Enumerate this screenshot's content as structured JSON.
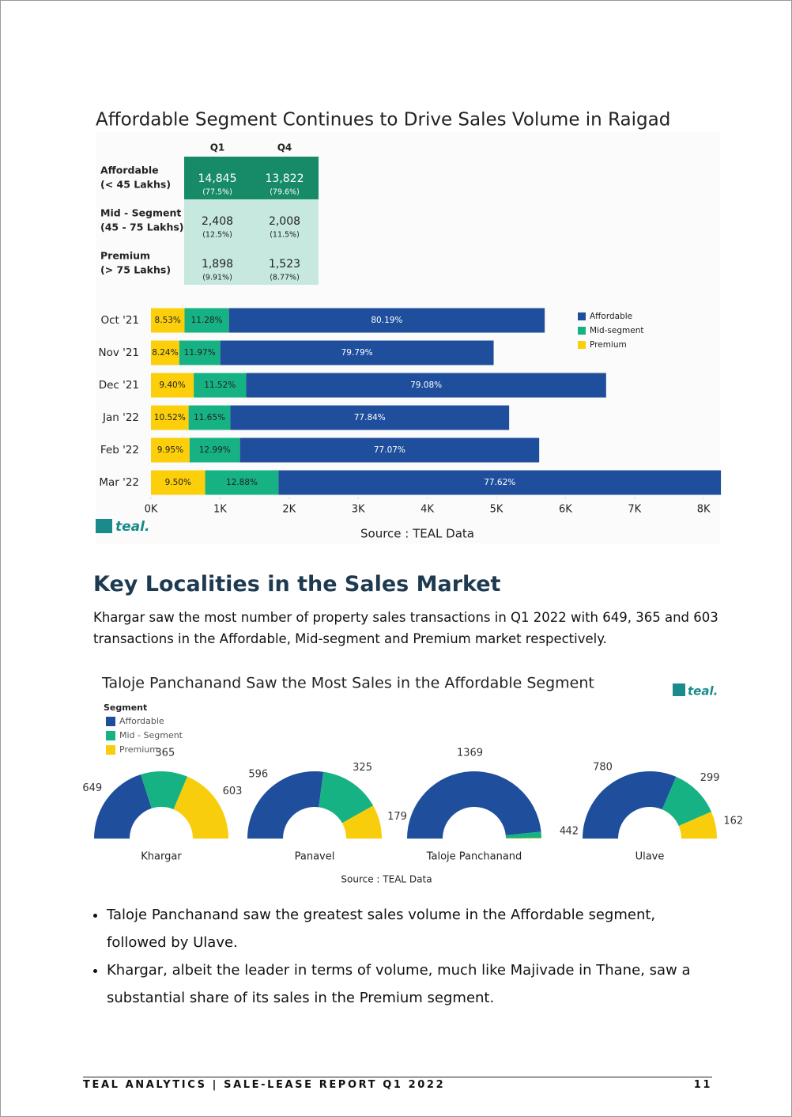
{
  "table": {
    "columns": [
      "Q1",
      "Q4"
    ],
    "rows": [
      {
        "label": [
          "Affordable",
          "(< 45 Lakhs)"
        ],
        "cells": [
          {
            "value": "14,845",
            "share": "(77.5%)"
          },
          {
            "value": "13,822",
            "share": "(79.6%)"
          }
        ]
      },
      {
        "label": [
          "Mid - Segment",
          "(45 - 75 Lakhs)"
        ],
        "cells": [
          {
            "value": "2,408",
            "share": "(12.5%)"
          },
          {
            "value": "2,008",
            "share": "(11.5%)"
          }
        ]
      },
      {
        "label": [
          "Premium",
          "(> 75 Lakhs)"
        ],
        "cells": [
          {
            "value": "1,898",
            "share": "(9.91%)"
          },
          {
            "value": "1,523",
            "share": "(8.77%)"
          }
        ]
      }
    ]
  },
  "chart_data": [
    {
      "type": "stacked-bar-horizontal",
      "title": "Affordable Segment Continues to Drive Sales Volume in Raigad",
      "categories": [
        "Oct '21",
        "Nov '21",
        "Dec '21",
        "Jan '22",
        "Feb '22",
        "Mar '22"
      ],
      "series": [
        {
          "name": "Affordable",
          "color": "#1f4e9c",
          "values": [
            4571,
            3958,
            5211,
            4036,
            4331,
            6404
          ],
          "labels": [
            "80.19%",
            "79.79%",
            "79.08%",
            "77.84%",
            "77.07%",
            "77.62%"
          ]
        },
        {
          "name": "Mid-segment",
          "color": "#17b283",
          "values": [
            643,
            594,
            759,
            604,
            730,
            1063
          ],
          "labels": [
            "11.28%",
            "11.97%",
            "11.52%",
            "11.65%",
            "12.99%",
            "12.88%"
          ]
        },
        {
          "name": "Premium",
          "color": "#fccf0a",
          "values": [
            486,
            409,
            619,
            545,
            559,
            784
          ],
          "labels": [
            "8.53%",
            "8.24%",
            "9.40%",
            "10.52%",
            "9.95%",
            "9.50%"
          ]
        }
      ],
      "xlim": [
        0,
        8250
      ],
      "xticks": [
        {
          "value": 0,
          "label": "0K"
        },
        {
          "value": 1000,
          "label": "1K"
        },
        {
          "value": 2000,
          "label": "2K"
        },
        {
          "value": 3000,
          "label": "3K"
        },
        {
          "value": 4000,
          "label": "4K"
        },
        {
          "value": 5000,
          "label": "5K"
        },
        {
          "value": 6000,
          "label": "6K"
        },
        {
          "value": 7000,
          "label": "7K"
        },
        {
          "value": 8000,
          "label": "8K"
        }
      ],
      "legend": "upper right",
      "source": "Source : TEAL Data",
      "logo": "teal."
    },
    {
      "type": "half-donut",
      "title": "Taloje Panchanand Saw the Most Sales in the Affordable Segment",
      "legend_title": "Segment",
      "categories": [
        "Khargar",
        "Panavel",
        "Taloje Panchanand",
        "Ulave"
      ],
      "series": [
        {
          "name": "Affordable",
          "color": "#1f4e9c",
          "values": [
            649,
            596,
            1369,
            780
          ]
        },
        {
          "name": "Mid - Segment",
          "color": "#17b283",
          "values": [
            365,
            325,
            42,
            299
          ]
        },
        {
          "name": "Premium",
          "color": "#f8cd0c",
          "values": [
            603,
            179,
            4,
            162
          ]
        }
      ],
      "source": "Source : TEAL Data",
      "logo": "teal."
    }
  ],
  "heading": "Key Localities in the Sales Market",
  "paragraph": "Khargar saw the most number of property sales transactions in Q1 2022 with 649, 365 and 603 transactions in the Affordable, Mid-segment and Premium market respectively.",
  "bullets": [
    "Taloje Panchanand saw the greatest  sales volume in the Affordable segment, followed by Ulave.",
    "Khargar, albeit the leader in terms of volume, much like Majivade in Thane, saw a substantial share of its sales in the Premium segment."
  ],
  "footer": {
    "left": "TEAL ANALYTICS | SALE-LEASE REPORT Q1 2022",
    "page": "11"
  }
}
